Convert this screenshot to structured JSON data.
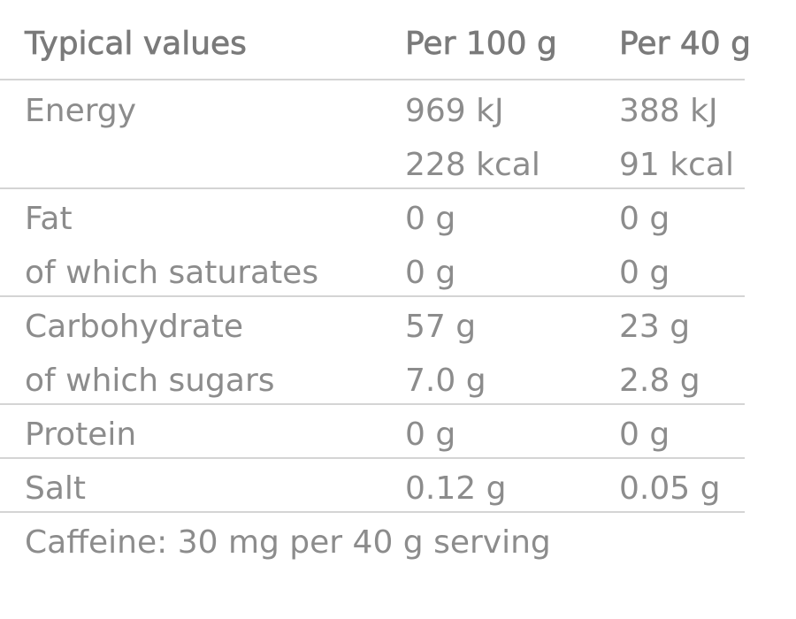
{
  "table": {
    "header": [
      "Typical values",
      "Per 100 g",
      "Per 40 g"
    ],
    "groups": [
      [
        {
          "label": "Energy",
          "per_100g": [
            "969 kJ",
            "228 kcal"
          ],
          "per_40g": [
            "388 kJ",
            "91 kcal"
          ]
        }
      ],
      [
        {
          "label": "Fat",
          "per_100g": [
            "0 g"
          ],
          "per_40g": [
            "0 g"
          ]
        },
        {
          "label": "of which saturates",
          "per_100g": [
            "0 g"
          ],
          "per_40g": [
            "0 g"
          ]
        }
      ],
      [
        {
          "label": "Carbohydrate",
          "per_100g": [
            "57 g"
          ],
          "per_40g": [
            "23 g"
          ]
        },
        {
          "label": "of which sugars",
          "per_100g": [
            "7.0 g"
          ],
          "per_40g": [
            "2.8 g"
          ]
        }
      ],
      [
        {
          "label": "Protein",
          "per_100g": [
            "0 g"
          ],
          "per_40g": [
            "0 g"
          ]
        }
      ],
      [
        {
          "label": "Salt",
          "per_100g": [
            "0.12 g"
          ],
          "per_40g": [
            "0.05 g"
          ]
        }
      ]
    ],
    "footer": "Caffeine: 30 mg per 40 g serving"
  }
}
